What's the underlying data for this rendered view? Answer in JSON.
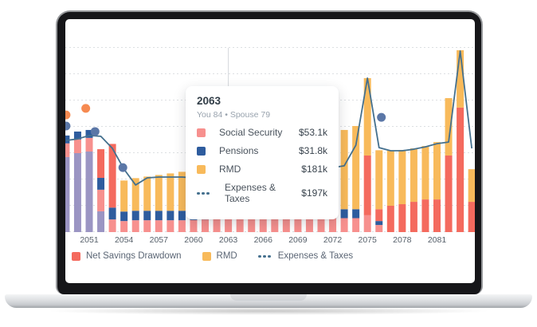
{
  "tooltip": {
    "year": "2063",
    "subtitle": "You 84 • Spouse 79",
    "rows": [
      {
        "label": "Social Security",
        "value": "$53.1k",
        "swatch": "#F7908E",
        "icon": "square"
      },
      {
        "label": "Pensions",
        "value": "$31.8k",
        "swatch": "#2E5C9E",
        "icon": "square"
      },
      {
        "label": "RMD",
        "value": "$181k",
        "swatch": "#F8BA5B",
        "icon": "square"
      },
      {
        "label": "Expenses & Taxes",
        "value": "$197k",
        "swatch": "#44708E",
        "icon": "dash"
      }
    ]
  },
  "legend": {
    "items": [
      {
        "label": "Net Savings Drawdown",
        "swatch": "#F46A5E",
        "icon": "square"
      },
      {
        "label": "RMD",
        "swatch": "#F8BA5B",
        "icon": "square"
      },
      {
        "label": "Expenses & Taxes",
        "swatch": "#44708E",
        "icon": "dash"
      }
    ]
  },
  "axis": {
    "ticks": [
      {
        "label": "2051",
        "year": 2051
      },
      {
        "label": "2054",
        "year": 2054
      },
      {
        "label": "2057",
        "year": 2057
      },
      {
        "label": "2060",
        "year": 2060
      },
      {
        "label": "2063",
        "year": 2063
      },
      {
        "label": "2066",
        "year": 2066
      },
      {
        "label": "2069",
        "year": 2069
      },
      {
        "label": "2072",
        "year": 2072
      },
      {
        "label": "2075",
        "year": 2075
      },
      {
        "label": "2078",
        "year": 2078
      },
      {
        "label": "2081",
        "year": 2081
      }
    ]
  },
  "chart_data": {
    "type": "bar+line+scatter",
    "units": "$k per year",
    "ylim": [
      0,
      700
    ],
    "gridline_step_k": 100,
    "grid": "dashed horizontal",
    "series_names": {
      "ss": "Social Security",
      "pen": "Pensions",
      "rmd": "RMD",
      "red": "Net Savings Drawdown",
      "purple": "Unlabeled purple series"
    },
    "colors": {
      "purple": "#9B95C3",
      "ss": "#F7908E",
      "pen": "#2E5C9E",
      "red": "#F46A5E",
      "rmd": "#F8BA5B",
      "line": "#44708E",
      "dot_orange": "#F68A51",
      "dot_blue": "#5B77A7",
      "gridline": "#DCDFE2",
      "pointer": "#D5D9DD"
    },
    "bars": [
      {
        "year": 2049,
        "segments": [
          [
            "purple",
            285
          ],
          [
            "ss",
            52
          ],
          [
            "pen",
            30
          ]
        ]
      },
      {
        "year": 2050,
        "segments": [
          [
            "purple",
            300
          ],
          [
            "ss",
            52
          ],
          [
            "pen",
            30
          ]
        ]
      },
      {
        "year": 2051,
        "segments": [
          [
            "purple",
            306
          ],
          [
            "ss",
            52
          ],
          [
            "pen",
            30
          ]
        ]
      },
      {
        "year": 2052,
        "segments": [
          [
            "purple",
            79
          ],
          [
            "ss",
            82
          ],
          [
            "pen",
            45
          ],
          [
            "red",
            109
          ]
        ]
      },
      {
        "year": 2053,
        "segments": [
          [
            "ss",
            48
          ],
          [
            "pen",
            45
          ],
          [
            "red",
            242
          ]
        ]
      },
      {
        "year": 2054,
        "segments": [
          [
            "ss",
            42
          ],
          [
            "pen",
            36
          ],
          [
            "rmd",
            118
          ]
        ]
      },
      {
        "year": 2055,
        "segments": [
          [
            "ss",
            45
          ],
          [
            "pen",
            36
          ],
          [
            "rmd",
            124
          ]
        ]
      },
      {
        "year": 2056,
        "segments": [
          [
            "ss",
            45
          ],
          [
            "pen",
            36
          ],
          [
            "rmd",
            130
          ]
        ]
      },
      {
        "year": 2057,
        "segments": [
          [
            "ss",
            45
          ],
          [
            "pen",
            36
          ],
          [
            "rmd",
            136
          ]
        ]
      },
      {
        "year": 2058,
        "segments": [
          [
            "ss",
            45
          ],
          [
            "pen",
            36
          ],
          [
            "rmd",
            142
          ]
        ]
      },
      {
        "year": 2059,
        "segments": [
          [
            "ss",
            45
          ],
          [
            "pen",
            36
          ],
          [
            "rmd",
            148
          ]
        ]
      },
      {
        "year": 2060,
        "segments": [
          [
            "ss",
            46
          ],
          [
            "pen",
            36
          ],
          [
            "rmd",
            152
          ]
        ]
      },
      {
        "year": 2061,
        "segments": [
          [
            "ss",
            48
          ],
          [
            "pen",
            34
          ],
          [
            "rmd",
            158
          ]
        ]
      },
      {
        "year": 2062,
        "segments": [
          [
            "ss",
            50
          ],
          [
            "pen",
            33
          ],
          [
            "rmd",
            170
          ]
        ]
      },
      {
        "year": 2063,
        "segments": [
          [
            "ss",
            53.1
          ],
          [
            "pen",
            31.8
          ],
          [
            "rmd",
            181
          ]
        ]
      },
      {
        "year": 2064,
        "segments": [
          [
            "ss",
            53
          ],
          [
            "pen",
            32
          ],
          [
            "rmd",
            190
          ]
        ]
      },
      {
        "year": 2065,
        "segments": [
          [
            "ss",
            53
          ],
          [
            "pen",
            32
          ],
          [
            "rmd",
            200
          ]
        ]
      },
      {
        "year": 2066,
        "segments": [
          [
            "ss",
            53
          ],
          [
            "pen",
            32
          ],
          [
            "rmd",
            210
          ]
        ]
      },
      {
        "year": 2067,
        "segments": [
          [
            "ss",
            53
          ],
          [
            "pen",
            32
          ],
          [
            "rmd",
            225
          ]
        ]
      },
      {
        "year": 2068,
        "segments": [
          [
            "ss",
            53
          ],
          [
            "pen",
            32
          ],
          [
            "rmd",
            245
          ]
        ]
      },
      {
        "year": 2069,
        "segments": [
          [
            "ss",
            53
          ],
          [
            "pen",
            32
          ],
          [
            "rmd",
            265
          ]
        ]
      },
      {
        "year": 2070,
        "segments": [
          [
            "ss",
            53
          ],
          [
            "pen",
            32
          ],
          [
            "rmd",
            280
          ]
        ]
      },
      {
        "year": 2071,
        "segments": [
          [
            "ss",
            53
          ],
          [
            "pen",
            32
          ],
          [
            "rmd",
            290
          ]
        ]
      },
      {
        "year": 2072,
        "segments": [
          [
            "ss",
            53
          ],
          [
            "pen",
            32
          ],
          [
            "rmd",
            295
          ]
        ]
      },
      {
        "year": 2073,
        "segments": [
          [
            "ss",
            53
          ],
          [
            "pen",
            34
          ],
          [
            "rmd",
            301
          ]
        ]
      },
      {
        "year": 2074,
        "segments": [
          [
            "ss",
            53
          ],
          [
            "pen",
            34
          ],
          [
            "rmd",
            316
          ]
        ]
      },
      {
        "year": 2075,
        "segments": [
          [
            "ss",
            64
          ],
          [
            "red",
            227
          ],
          [
            "rmd",
            294
          ]
        ]
      },
      {
        "year": 2076,
        "segments": [
          [
            "ss",
            27
          ],
          [
            "pen",
            15
          ],
          [
            "red",
            45
          ],
          [
            "rmd",
            224
          ]
        ]
      },
      {
        "year": 2077,
        "segments": [
          [
            "red",
            100
          ],
          [
            "rmd",
            209
          ]
        ]
      },
      {
        "year": 2078,
        "segments": [
          [
            "red",
            106
          ],
          [
            "rmd",
            206
          ]
        ]
      },
      {
        "year": 2079,
        "segments": [
          [
            "red",
            115
          ],
          [
            "rmd",
            203
          ]
        ]
      },
      {
        "year": 2080,
        "segments": [
          [
            "red",
            124
          ],
          [
            "rmd",
            203
          ]
        ]
      },
      {
        "year": 2081,
        "segments": [
          [
            "red",
            124
          ],
          [
            "rmd",
            218
          ]
        ]
      },
      {
        "year": 2082,
        "segments": [
          [
            "red",
            291
          ],
          [
            "rmd",
            218
          ]
        ]
      },
      {
        "year": 2083,
        "segments": [
          [
            "red",
            473
          ],
          [
            "rmd",
            218
          ]
        ]
      },
      {
        "year": 2084,
        "segments": [
          [
            "red",
            115
          ],
          [
            "rmd",
            124
          ]
        ]
      }
    ],
    "line": {
      "name": "Expenses & Taxes",
      "points": [
        [
          2049,
          348
        ],
        [
          2050,
          354
        ],
        [
          2051,
          367
        ],
        [
          2052,
          364
        ],
        [
          2053,
          318
        ],
        [
          2054,
          239
        ],
        [
          2055,
          179
        ],
        [
          2056,
          206
        ],
        [
          2057,
          209
        ],
        [
          2058,
          209
        ],
        [
          2059,
          209
        ],
        [
          2060,
          206
        ],
        [
          2061,
          203
        ],
        [
          2062,
          200
        ],
        [
          2063,
          197
        ],
        [
          2064,
          200
        ],
        [
          2065,
          203
        ],
        [
          2066,
          206
        ],
        [
          2067,
          209
        ],
        [
          2068,
          215
        ],
        [
          2069,
          221
        ],
        [
          2070,
          230
        ],
        [
          2071,
          239
        ],
        [
          2072,
          245
        ],
        [
          2073,
          252
        ],
        [
          2074,
          330
        ],
        [
          2075,
          585
        ],
        [
          2076,
          321
        ],
        [
          2077,
          309
        ],
        [
          2078,
          309
        ],
        [
          2079,
          315
        ],
        [
          2080,
          324
        ],
        [
          2081,
          336
        ],
        [
          2082,
          342
        ],
        [
          2083,
          688
        ],
        [
          2084,
          318
        ]
      ]
    },
    "scatter": [
      {
        "x": 2050.7,
        "y": 470,
        "c": "dot_orange"
      },
      {
        "x": 2049.0,
        "y": 445,
        "c": "dot_orange"
      },
      {
        "x": 2059.9,
        "y": 333,
        "c": "dot_orange"
      },
      {
        "x": 2049.0,
        "y": 403,
        "c": "dot_blue"
      },
      {
        "x": 2051.5,
        "y": 382,
        "c": "dot_blue"
      },
      {
        "x": 2053.9,
        "y": 245,
        "c": "dot_blue"
      },
      {
        "x": 2076.2,
        "y": 436,
        "c": "dot_blue"
      }
    ],
    "pointer": {
      "year": 2063
    }
  }
}
